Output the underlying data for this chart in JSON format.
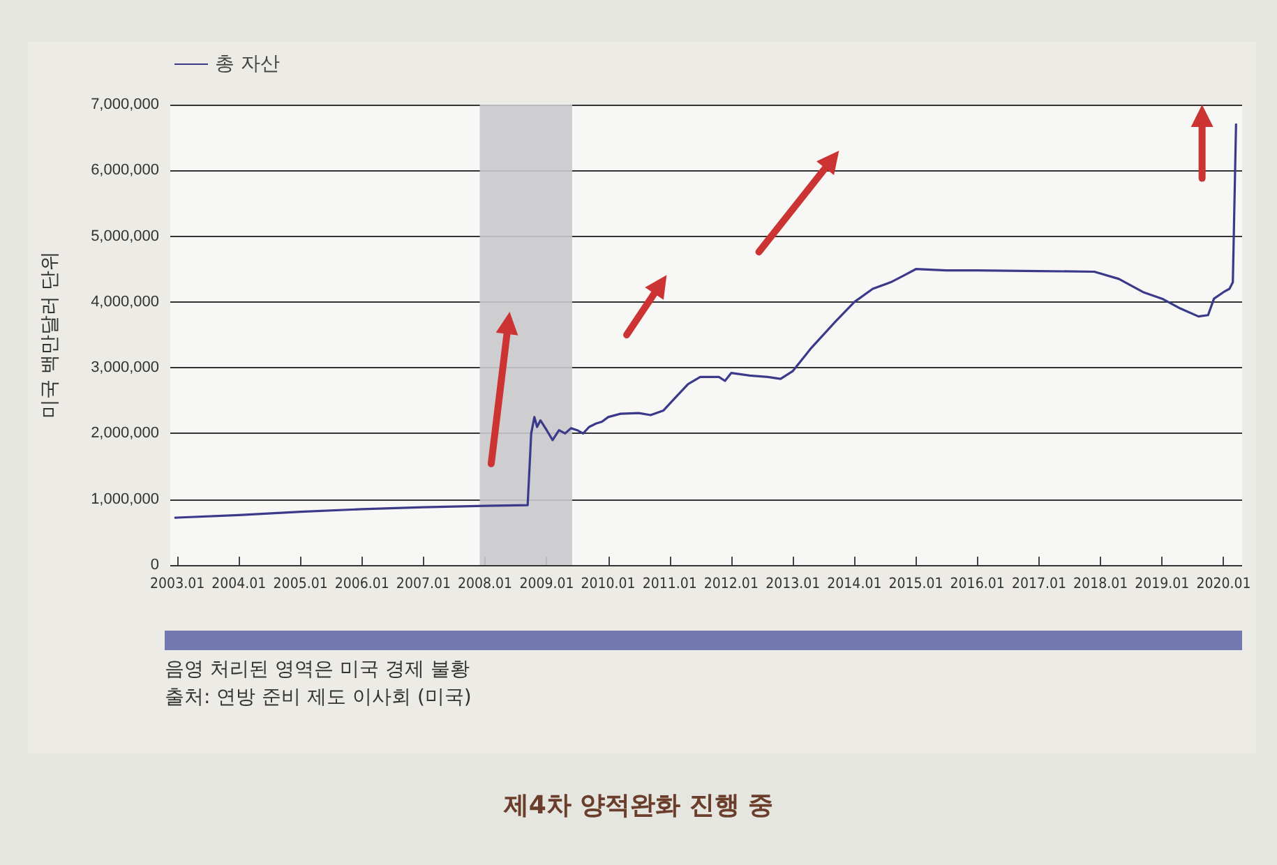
{
  "chart_data": {
    "type": "line",
    "title": "제4차 양적완화 진행 중",
    "ylabel": "미국 백만달러 단위",
    "annotations": [
      "음영 처리된 영역은 미국 경제 불황",
      "출처: 연방 준비 제도 이사회 (미국)"
    ],
    "series": [
      {
        "name": "총 자산",
        "color": "#3b3a8a",
        "x": [
          "2002-12-20",
          "2004-01",
          "2005-01",
          "2006-01",
          "2007-01",
          "2008-01",
          "2008-09-10",
          "2008-10-01",
          "2008-10-20",
          "2008-11-05",
          "2008-11-25",
          "2009-01",
          "2009-02-05",
          "2009-03-15",
          "2009-04-20",
          "2009-05-25",
          "2009-07-01",
          "2009-08-05",
          "2009-09-10",
          "2009-10-20",
          "2009-11-25",
          "2010-01",
          "2010-03-15",
          "2010-07-01",
          "2010-09-10",
          "2010-11-25",
          "2011-02-05",
          "2011-04-20",
          "2011-07-01",
          "2011-10-20",
          "2011-11-25",
          "2012-01",
          "2012-04-20",
          "2012-08-05",
          "2012-10-20",
          "2013-01",
          "2013-04-20",
          "2013-09-10",
          "2014-01",
          "2014-04-20",
          "2014-08-05",
          "2014-10-20",
          "2015-01",
          "2015-07-01",
          "2016-01",
          "2017-01",
          "2017-11-25",
          "2018-04-20",
          "2018-09-10",
          "2019-01",
          "2019-04-20",
          "2019-08-05",
          "2019-10-01",
          "2019-11-05",
          "2020-01",
          "2020-02-05",
          "2020-02-25",
          "2020-03-15"
        ],
        "values": [
          720000,
          760000,
          810000,
          850000,
          880000,
          900000,
          910000,
          2000000,
          2250000,
          2100000,
          2200000,
          2050000,
          1900000,
          2050000,
          2000000,
          2080000,
          2050000,
          2000000,
          2100000,
          2150000,
          2180000,
          2250000,
          2300000,
          2310000,
          2280000,
          2350000,
          2550000,
          2750000,
          2860000,
          2860000,
          2800000,
          2920000,
          2880000,
          2860000,
          2830000,
          2950000,
          3300000,
          3700000,
          4000000,
          4200000,
          4300000,
          4400000,
          4500000,
          4480000,
          4480000,
          4470000,
          4460000,
          4350000,
          4150000,
          4050000,
          3900000,
          3780000,
          3800000,
          4050000,
          4150000,
          4200000,
          4300000,
          6700000
        ]
      }
    ],
    "xlim": [
      "2002-11-20",
      "2020-04-20"
    ],
    "xticks": [
      {
        "value": "2003-01",
        "label": "2003.01"
      },
      {
        "value": "2004-01",
        "label": "2004.01"
      },
      {
        "value": "2005-01",
        "label": "2005.01"
      },
      {
        "value": "2006-01",
        "label": "2006.01"
      },
      {
        "value": "2007-01",
        "label": "2007.01"
      },
      {
        "value": "2008-01",
        "label": "2008.01"
      },
      {
        "value": "2009-01",
        "label": "2009.01"
      },
      {
        "value": "2010-01",
        "label": "2010.01"
      },
      {
        "value": "2011-01",
        "label": "2011.01"
      },
      {
        "value": "2012-01",
        "label": "2012.01"
      },
      {
        "value": "2013-01",
        "label": "2013.01"
      },
      {
        "value": "2014-01",
        "label": "2014.01"
      },
      {
        "value": "2015-01",
        "label": "2015.01"
      },
      {
        "value": "2016-01",
        "label": "2016.01"
      },
      {
        "value": "2017-01",
        "label": "2017.01"
      },
      {
        "value": "2018-01",
        "label": "2018.01"
      },
      {
        "value": "2019-01",
        "label": "2019.01"
      },
      {
        "value": "2020-01",
        "label": "2020.01"
      }
    ],
    "ylim": [
      0,
      7000000
    ],
    "yticks": [
      {
        "value": 0,
        "label": "0"
      },
      {
        "value": 1000000,
        "label": "1,000,000"
      },
      {
        "value": 2000000,
        "label": "2,000,000"
      },
      {
        "value": 3000000,
        "label": "3,000,000"
      },
      {
        "value": 4000000,
        "label": "4,000,000"
      },
      {
        "value": 5000000,
        "label": "5,000,000"
      },
      {
        "value": 6000000,
        "label": "6,000,000"
      },
      {
        "value": 7000000,
        "label": "7,000,000"
      }
    ],
    "bands": [
      {
        "axis": "x",
        "from": "2007-12",
        "to": "2009-06",
        "label": null,
        "color": "#c9c9cc"
      }
    ],
    "grid": "y",
    "legend": "top left",
    "marker": "none",
    "line_style": "solid"
  }
}
